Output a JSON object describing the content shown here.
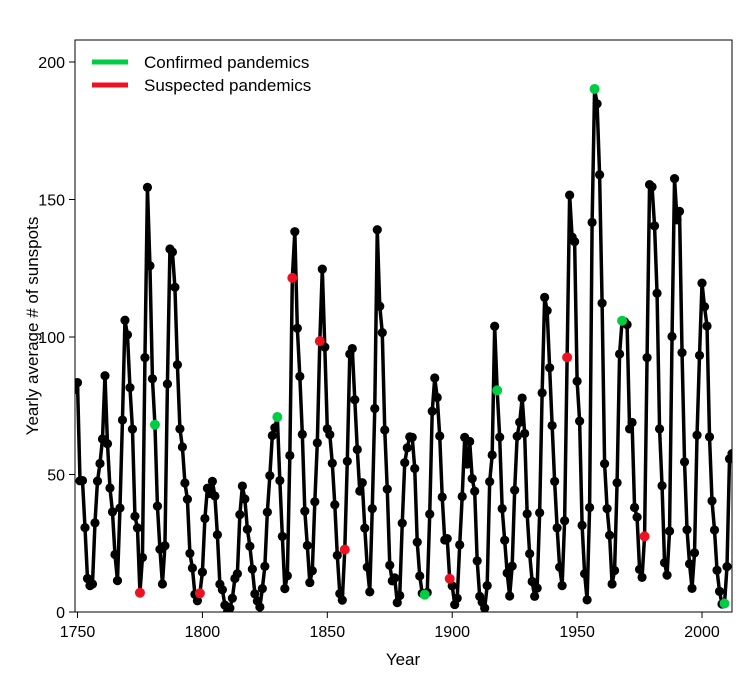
{
  "chart_data": {
    "type": "line",
    "title": "",
    "xlabel": "Year",
    "ylabel": "Yearly average # of sunspots",
    "xlim": [
      1749,
      2012
    ],
    "ylim": [
      0,
      208
    ],
    "xticks": [
      "1750",
      "1800",
      "1850",
      "1900",
      "1950",
      "2000"
    ],
    "yticks": [
      "0",
      "50",
      "100",
      "150",
      "200"
    ],
    "grid": false,
    "legend_position": "top-left",
    "legend": [
      {
        "label": "Confirmed pandemics",
        "color": "#00cc44"
      },
      {
        "label": "Suspected pandemics",
        "color": "#ee1122"
      }
    ],
    "series": [
      {
        "color": "#000000",
        "x": [
          1749,
          1750,
          1751,
          1752,
          1753,
          1754,
          1755,
          1756,
          1757,
          1758,
          1759,
          1760,
          1761,
          1762,
          1763,
          1764,
          1765,
          1766,
          1767,
          1768,
          1769,
          1770,
          1771,
          1772,
          1773,
          1774,
          1775,
          1776,
          1777,
          1778,
          1779,
          1780,
          1781,
          1782,
          1783,
          1784,
          1785,
          1786,
          1787,
          1788,
          1789,
          1790,
          1791,
          1792,
          1793,
          1794,
          1795,
          1796,
          1797,
          1798,
          1799,
          1800,
          1801,
          1802,
          1803,
          1804,
          1805,
          1806,
          1807,
          1808,
          1809,
          1810,
          1811,
          1812,
          1813,
          1814,
          1815,
          1816,
          1817,
          1818,
          1819,
          1820,
          1821,
          1822,
          1823,
          1824,
          1825,
          1826,
          1827,
          1828,
          1829,
          1830,
          1831,
          1832,
          1833,
          1834,
          1835,
          1836,
          1837,
          1838,
          1839,
          1840,
          1841,
          1842,
          1843,
          1844,
          1845,
          1846,
          1847,
          1848,
          1849,
          1850,
          1851,
          1852,
          1853,
          1854,
          1855,
          1856,
          1857,
          1858,
          1859,
          1860,
          1861,
          1862,
          1863,
          1864,
          1865,
          1866,
          1867,
          1868,
          1869,
          1870,
          1871,
          1872,
          1873,
          1874,
          1875,
          1876,
          1877,
          1878,
          1879,
          1880,
          1881,
          1882,
          1883,
          1884,
          1885,
          1886,
          1887,
          1888,
          1889,
          1890,
          1891,
          1892,
          1893,
          1894,
          1895,
          1896,
          1897,
          1898,
          1899,
          1900,
          1901,
          1902,
          1903,
          1904,
          1905,
          1906,
          1907,
          1908,
          1909,
          1910,
          1911,
          1912,
          1913,
          1914,
          1915,
          1916,
          1917,
          1918,
          1919,
          1920,
          1921,
          1922,
          1923,
          1924,
          1925,
          1926,
          1927,
          1928,
          1929,
          1930,
          1931,
          1932,
          1933,
          1934,
          1935,
          1936,
          1937,
          1938,
          1939,
          1940,
          1941,
          1942,
          1943,
          1944,
          1945,
          1946,
          1947,
          1948,
          1949,
          1950,
          1951,
          1952,
          1953,
          1954,
          1955,
          1956,
          1957,
          1958,
          1959,
          1960,
          1961,
          1962,
          1963,
          1964,
          1965,
          1966,
          1967,
          1968,
          1969,
          1970,
          1971,
          1972,
          1973,
          1974,
          1975,
          1976,
          1977,
          1978,
          1979,
          1980,
          1981,
          1982,
          1983,
          1984,
          1985,
          1986,
          1987,
          1988,
          1989,
          1990,
          1991,
          1992,
          1993,
          1994,
          1995,
          1996,
          1997,
          1998,
          1999,
          2000,
          2001,
          2002,
          2003,
          2004,
          2005,
          2006,
          2007,
          2008,
          2009,
          2010,
          2011,
          2012
        ],
        "y": [
          80.9,
          83.4,
          47.7,
          47.8,
          30.7,
          12.2,
          9.6,
          10.2,
          32.4,
          47.6,
          54.0,
          62.9,
          85.9,
          61.2,
          45.1,
          36.4,
          20.9,
          11.4,
          37.8,
          69.8,
          106.1,
          100.8,
          81.6,
          66.5,
          34.8,
          30.6,
          7.0,
          19.8,
          92.5,
          154.4,
          125.9,
          84.8,
          68.1,
          38.5,
          22.8,
          10.2,
          24.1,
          82.9,
          132.0,
          130.9,
          118.1,
          89.9,
          66.6,
          60.0,
          46.9,
          41.0,
          21.3,
          16.0,
          6.4,
          4.1,
          6.8,
          14.5,
          34.0,
          45.0,
          43.1,
          47.5,
          42.2,
          28.1,
          10.1,
          8.1,
          2.5,
          0.0,
          1.4,
          5.0,
          12.2,
          13.9,
          35.4,
          45.8,
          41.1,
          30.1,
          23.9,
          15.6,
          6.6,
          4.0,
          1.8,
          8.5,
          16.6,
          36.3,
          49.6,
          64.2,
          67.0,
          70.9,
          47.8,
          27.5,
          8.5,
          13.2,
          56.9,
          121.5,
          138.3,
          103.2,
          85.7,
          64.6,
          36.7,
          24.2,
          10.7,
          15.0,
          40.1,
          61.5,
          98.5,
          124.7,
          96.3,
          66.6,
          64.5,
          54.1,
          39.0,
          20.6,
          6.7,
          4.3,
          22.7,
          54.8,
          93.8,
          95.8,
          77.2,
          59.1,
          44.0,
          47.0,
          30.5,
          16.3,
          7.3,
          37.6,
          74.0,
          139.0,
          111.2,
          101.6,
          66.2,
          44.7,
          17.0,
          11.3,
          12.4,
          3.4,
          6.0,
          32.3,
          54.3,
          59.7,
          63.7,
          63.5,
          52.2,
          25.4,
          13.1,
          6.8,
          6.3,
          7.1,
          35.6,
          73.0,
          85.1,
          78.0,
          64.0,
          41.8,
          26.2,
          26.7,
          12.1,
          9.5,
          2.7,
          5.0,
          24.4,
          42.0,
          63.5,
          53.8,
          62.0,
          48.5,
          43.9,
          18.6,
          5.7,
          3.6,
          1.4,
          9.6,
          47.4,
          57.1,
          103.9,
          80.6,
          63.6,
          37.6,
          26.1,
          14.2,
          5.8,
          16.7,
          44.3,
          63.9,
          69.0,
          77.8,
          64.9,
          35.7,
          21.2,
          11.1,
          5.7,
          8.7,
          36.1,
          79.7,
          114.4,
          109.6,
          88.8,
          67.8,
          47.5,
          30.6,
          16.3,
          9.6,
          33.2,
          92.6,
          151.6,
          136.3,
          134.7,
          83.9,
          69.4,
          31.5,
          13.9,
          4.4,
          38.0,
          141.7,
          190.2,
          184.8,
          159.0,
          112.3,
          53.9,
          37.6,
          27.9,
          10.2,
          15.1,
          47.0,
          93.8,
          105.9,
          105.5,
          104.5,
          66.6,
          68.9,
          38.0,
          34.5,
          15.5,
          12.6,
          27.5,
          92.5,
          155.4,
          154.6,
          140.4,
          115.9,
          66.6,
          45.9,
          17.9,
          13.4,
          29.4,
          100.2,
          157.6,
          142.6,
          145.7,
          94.3,
          54.6,
          29.9,
          17.5,
          8.6,
          21.5,
          64.3,
          93.3,
          119.6,
          111.0,
          104.0,
          63.7,
          40.4,
          29.8,
          15.2,
          7.5,
          2.9,
          3.1,
          16.5,
          55.7,
          57.6
        ]
      }
    ],
    "pandemics": {
      "confirmed": [
        {
          "x": 1781,
          "y": 68.1
        },
        {
          "x": 1830,
          "y": 70.9
        },
        {
          "x": 1889,
          "y": 6.3
        },
        {
          "x": 1918,
          "y": 80.6
        },
        {
          "x": 1957,
          "y": 190.2
        },
        {
          "x": 1968,
          "y": 105.9
        },
        {
          "x": 2009,
          "y": 3.1
        }
      ],
      "suspected": [
        {
          "x": 1775,
          "y": 7.0
        },
        {
          "x": 1799,
          "y": 6.8
        },
        {
          "x": 1836,
          "y": 121.5
        },
        {
          "x": 1847,
          "y": 98.5
        },
        {
          "x": 1857,
          "y": 22.7
        },
        {
          "x": 1899,
          "y": 12.1
        },
        {
          "x": 1946,
          "y": 92.6
        },
        {
          "x": 1977,
          "y": 27.5
        }
      ]
    }
  }
}
